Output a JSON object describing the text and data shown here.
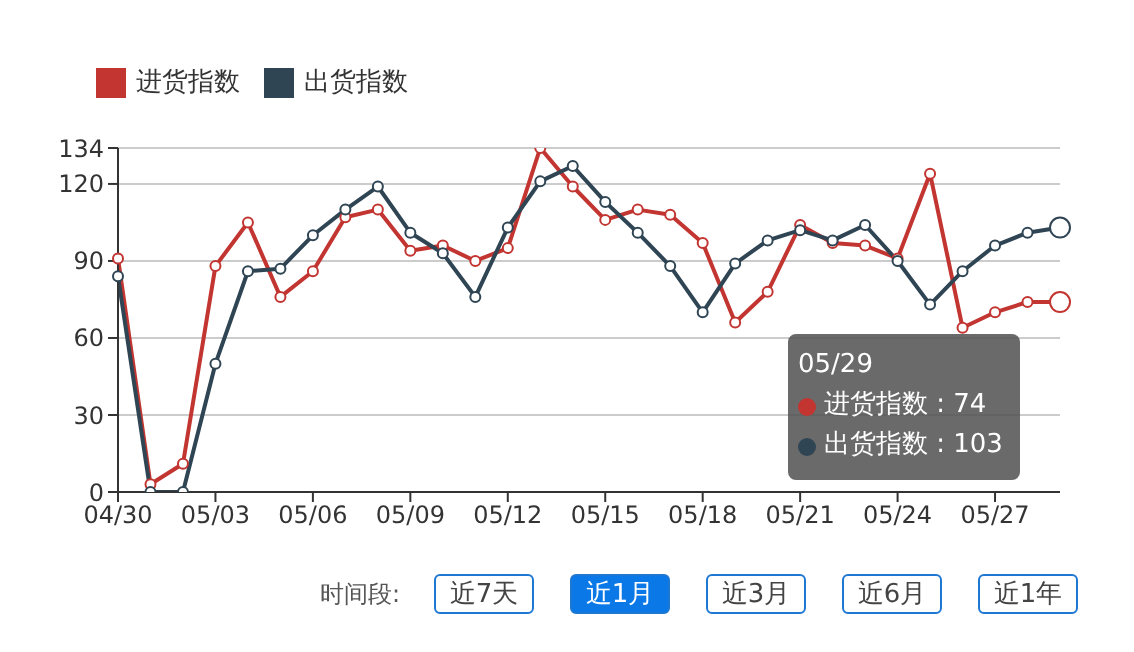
{
  "chart_data": {
    "type": "line",
    "categories": [
      "04/30",
      null,
      null,
      "05/03",
      null,
      null,
      "05/06",
      null,
      null,
      "05/09",
      null,
      null,
      "05/12",
      null,
      null,
      "05/15",
      null,
      null,
      "05/18",
      null,
      null,
      "05/21",
      null,
      null,
      "05/24",
      null,
      null,
      "05/27",
      null,
      null
    ],
    "series": [
      {
        "name": "进货指数",
        "color": "#c23531",
        "values": [
          91,
          3,
          11,
          88,
          105,
          76,
          86,
          107,
          110,
          94,
          96,
          90,
          95,
          134,
          119,
          106,
          110,
          108,
          97,
          66,
          78,
          104,
          97,
          96,
          91,
          124,
          64,
          70,
          74,
          74
        ]
      },
      {
        "name": "出货指数",
        "color": "#2f4554",
        "values": [
          84,
          0,
          0,
          50,
          86,
          87,
          100,
          110,
          119,
          101,
          93,
          76,
          103,
          121,
          127,
          113,
          101,
          88,
          70,
          89,
          98,
          102,
          98,
          104,
          90,
          73,
          86,
          96,
          101,
          103
        ]
      }
    ],
    "ylim": [
      0,
      134
    ],
    "yticks": [
      0,
      30,
      60,
      90,
      120,
      134
    ],
    "grid": "y",
    "legend": "top left",
    "marker": "circle",
    "line_style": "solid",
    "annotations": [
      "05/29",
      "进货指数 : 74",
      "出货指数 : 103",
      "时间段:",
      "近7天",
      "近1月",
      "近3月",
      "近6月",
      "近1年"
    ]
  }
}
